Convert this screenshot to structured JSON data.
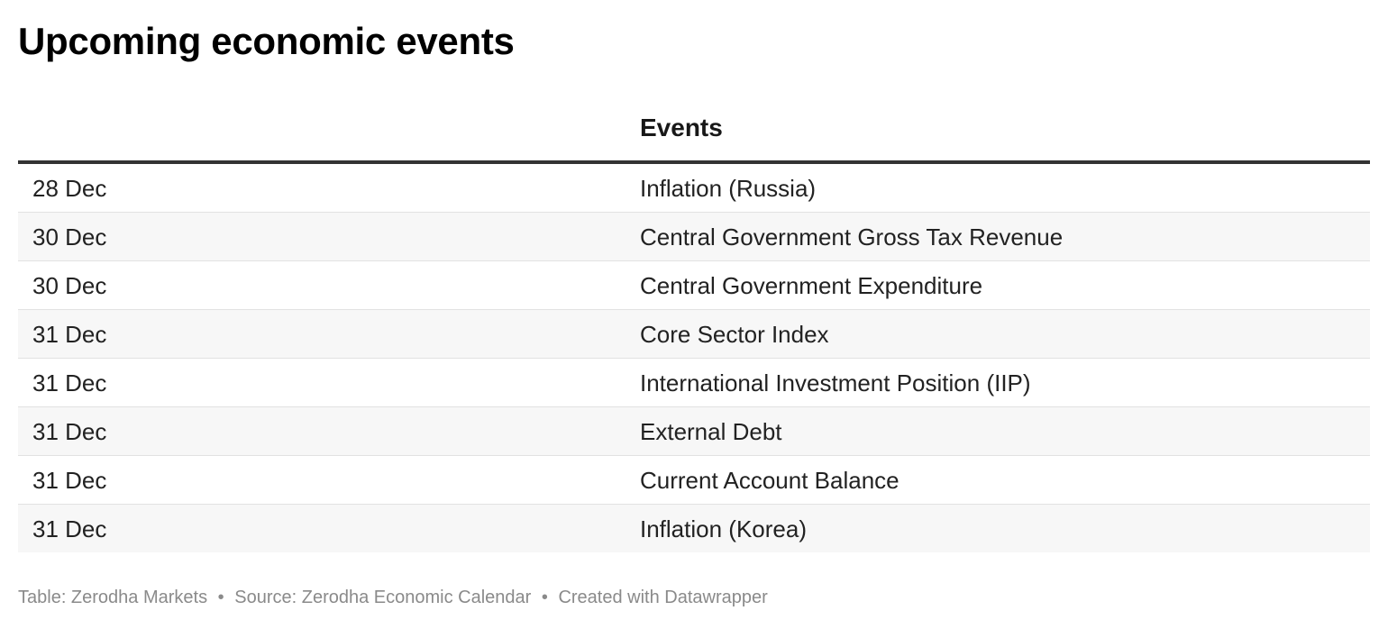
{
  "title": "Upcoming economic events",
  "table": {
    "columns": [
      "",
      "Events"
    ],
    "rows": [
      {
        "date": "28 Dec",
        "event": "Inflation (Russia)"
      },
      {
        "date": "30 Dec",
        "event": "Central Government Gross Tax Revenue"
      },
      {
        "date": "30 Dec",
        "event": "Central Government Expenditure"
      },
      {
        "date": "31 Dec",
        "event": "Core Sector Index"
      },
      {
        "date": "31 Dec",
        "event": "International Investment Position (IIP)"
      },
      {
        "date": "31 Dec",
        "event": "External Debt"
      },
      {
        "date": "31 Dec",
        "event": "Current Account Balance"
      },
      {
        "date": "31 Dec",
        "event": "Inflation (Korea)"
      }
    ]
  },
  "footer": {
    "table_credit": "Table: Zerodha Markets",
    "source": "Source: Zerodha Economic Calendar",
    "created_with": "Created with Datawrapper",
    "separator": "•"
  },
  "colors": {
    "header_border": "#333333",
    "shaded_row": "#f7f7f7",
    "footer_text": "#8a8a8a"
  }
}
